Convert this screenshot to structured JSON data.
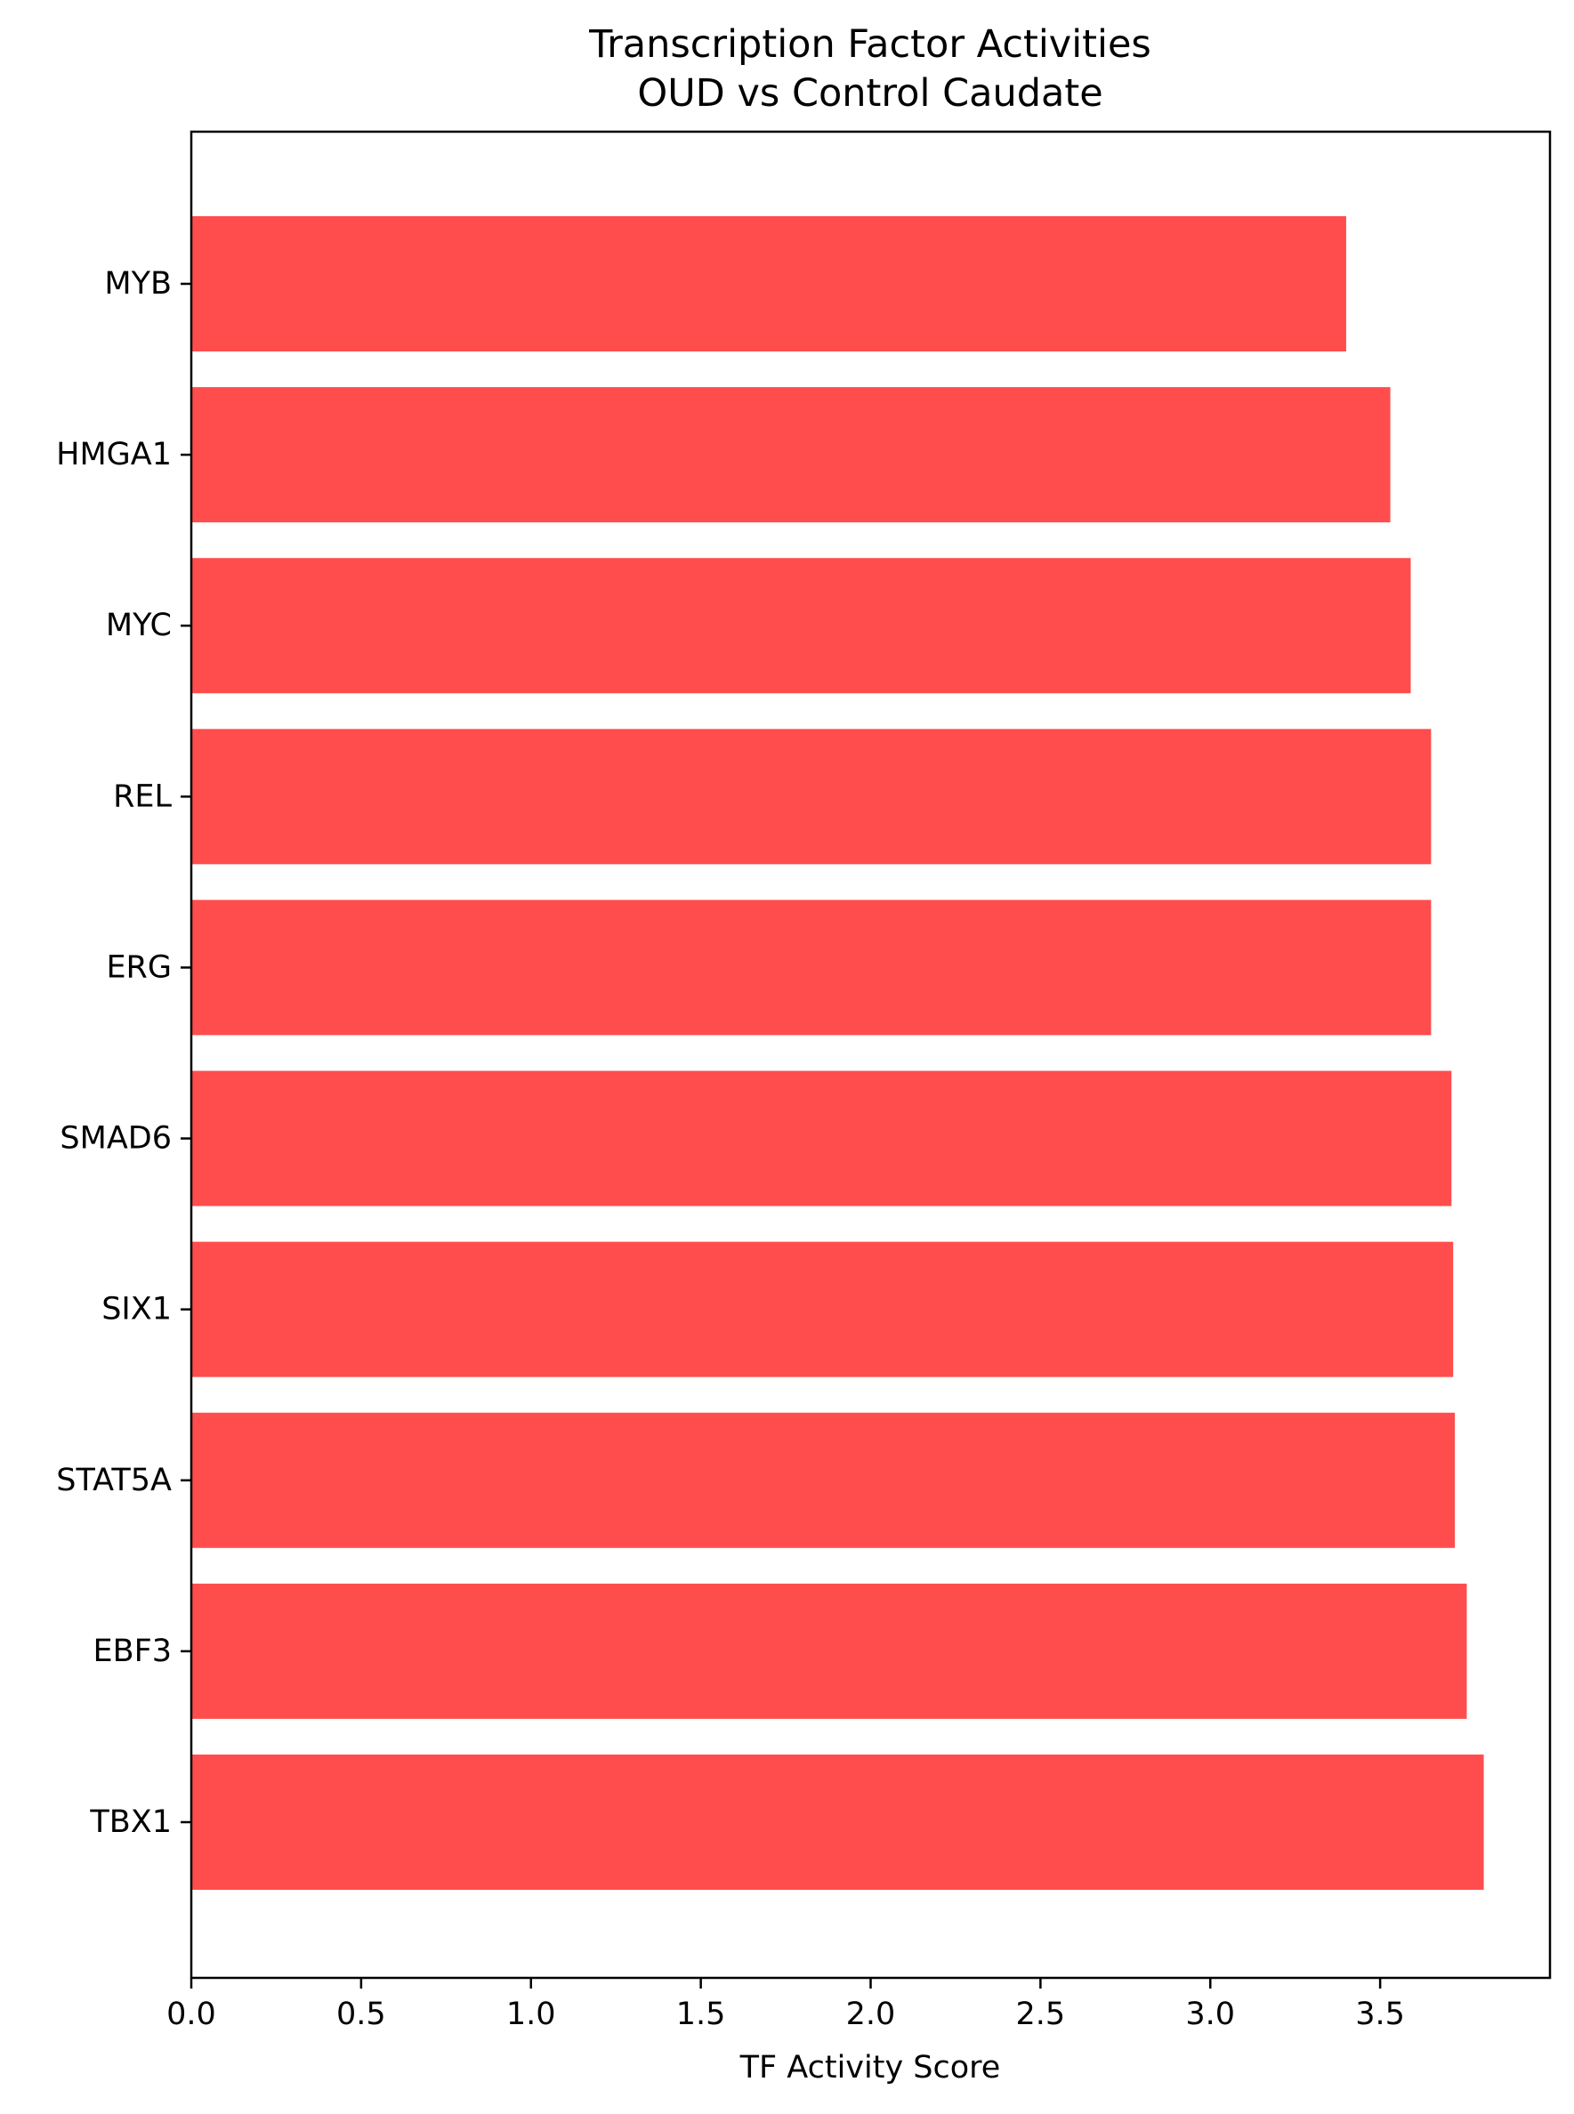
{
  "chart_data": {
    "type": "bar",
    "orientation": "horizontal",
    "title": "Transcription Factor Activities\nOUD vs Control Caudate",
    "xlabel": "TF Activity Score",
    "ylabel": "",
    "xlim": [
      0,
      4.0
    ],
    "xticks": [
      0.0,
      0.5,
      1.0,
      1.5,
      2.0,
      2.5,
      3.0,
      3.5
    ],
    "xtick_labels": [
      "0.0",
      "0.5",
      "1.0",
      "1.5",
      "2.0",
      "2.5",
      "3.0",
      "3.5"
    ],
    "categories": [
      "MYB",
      "HMGA1",
      "MYC",
      "REL",
      "ERG",
      "SMAD6",
      "SIX1",
      "STAT5A",
      "EBF3",
      "TBX1"
    ],
    "values": [
      3.4,
      3.53,
      3.59,
      3.65,
      3.65,
      3.71,
      3.715,
      3.72,
      3.755,
      3.805
    ],
    "bar_color": "#ff4d4d",
    "grid": false,
    "legend": "none"
  }
}
